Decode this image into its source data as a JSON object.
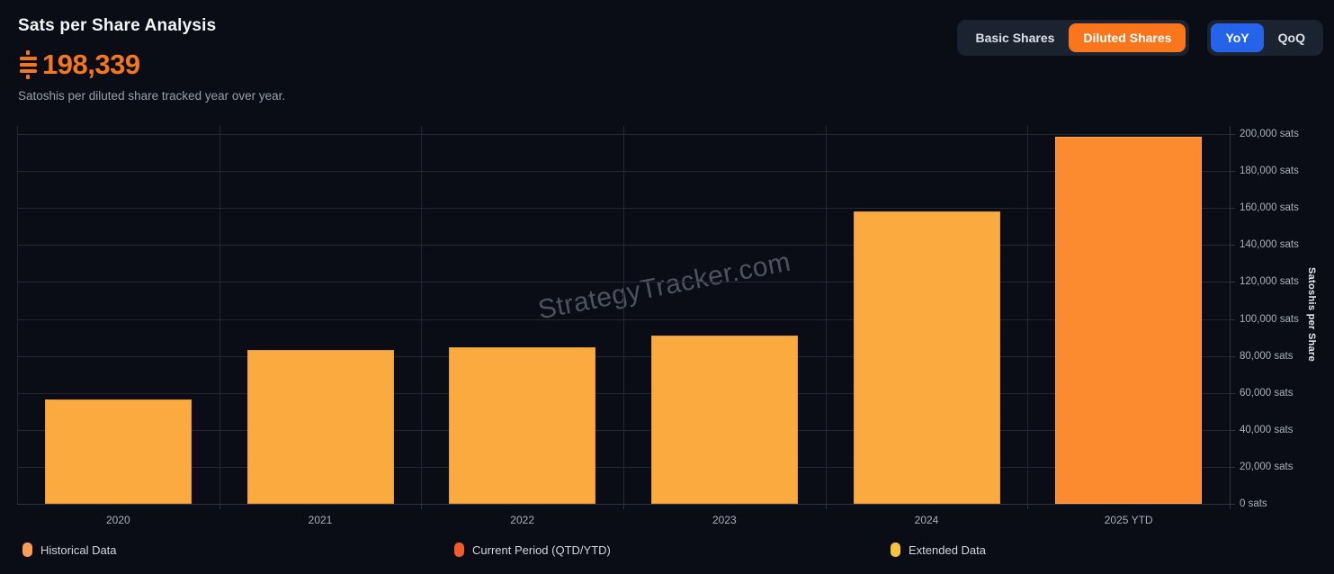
{
  "header": {
    "title": "Sats per Share Analysis",
    "value": "198,339",
    "subtitle": "Satoshis per diluted share tracked year over year."
  },
  "toolbar": {
    "share_toggle": [
      {
        "label": "Basic Shares",
        "active": false
      },
      {
        "label": "Diluted Shares",
        "active": true
      }
    ],
    "period_toggle": [
      {
        "label": "YoY",
        "active": true
      },
      {
        "label": "QoQ",
        "active": false
      }
    ]
  },
  "colors": {
    "background": "#0a0d15",
    "accent_orange": "#f9761d",
    "accent_blue": "#2563eb",
    "value_text": "#f2771f",
    "historical_bar": "#fbaa40",
    "historical_bar_border": "#e59b31",
    "current_bar": "#fb8b2e",
    "current_bar_border": "#fca24a",
    "legend_historical": "#fb9e55",
    "legend_current": "#f15a2b",
    "legend_extended": "#f7c23e"
  },
  "chart_data": {
    "type": "bar",
    "title": "Sats per Share Analysis",
    "categories": [
      "2020",
      "2021",
      "2022",
      "2023",
      "2024",
      "2025 YTD"
    ],
    "values": [
      56500,
      83200,
      84700,
      91000,
      158100,
      198339
    ],
    "point_roles": [
      "historical",
      "historical",
      "historical",
      "historical",
      "historical",
      "current"
    ],
    "xlabel": "",
    "ylabel": "Satoshis per Share",
    "ylim": [
      0,
      200000
    ],
    "y_tick_interval": 20000,
    "y_tick_labels": [
      "0 sats",
      "20,000 sats",
      "40,000 sats",
      "60,000 sats",
      "80,000 sats",
      "100,000 sats",
      "120,000 sats",
      "140,000 sats",
      "160,000 sats",
      "180,000 sats",
      "200,000 sats"
    ],
    "grid": true,
    "legend_position": "bottom"
  },
  "legend": {
    "items": [
      {
        "label": "Historical Data",
        "color": "#fb9e55"
      },
      {
        "label": "Current Period (QTD/YTD)",
        "color": "#f15a2b"
      },
      {
        "label": "Extended Data",
        "color": "#f7c23e"
      }
    ]
  },
  "watermark": "StrategyTracker.com"
}
